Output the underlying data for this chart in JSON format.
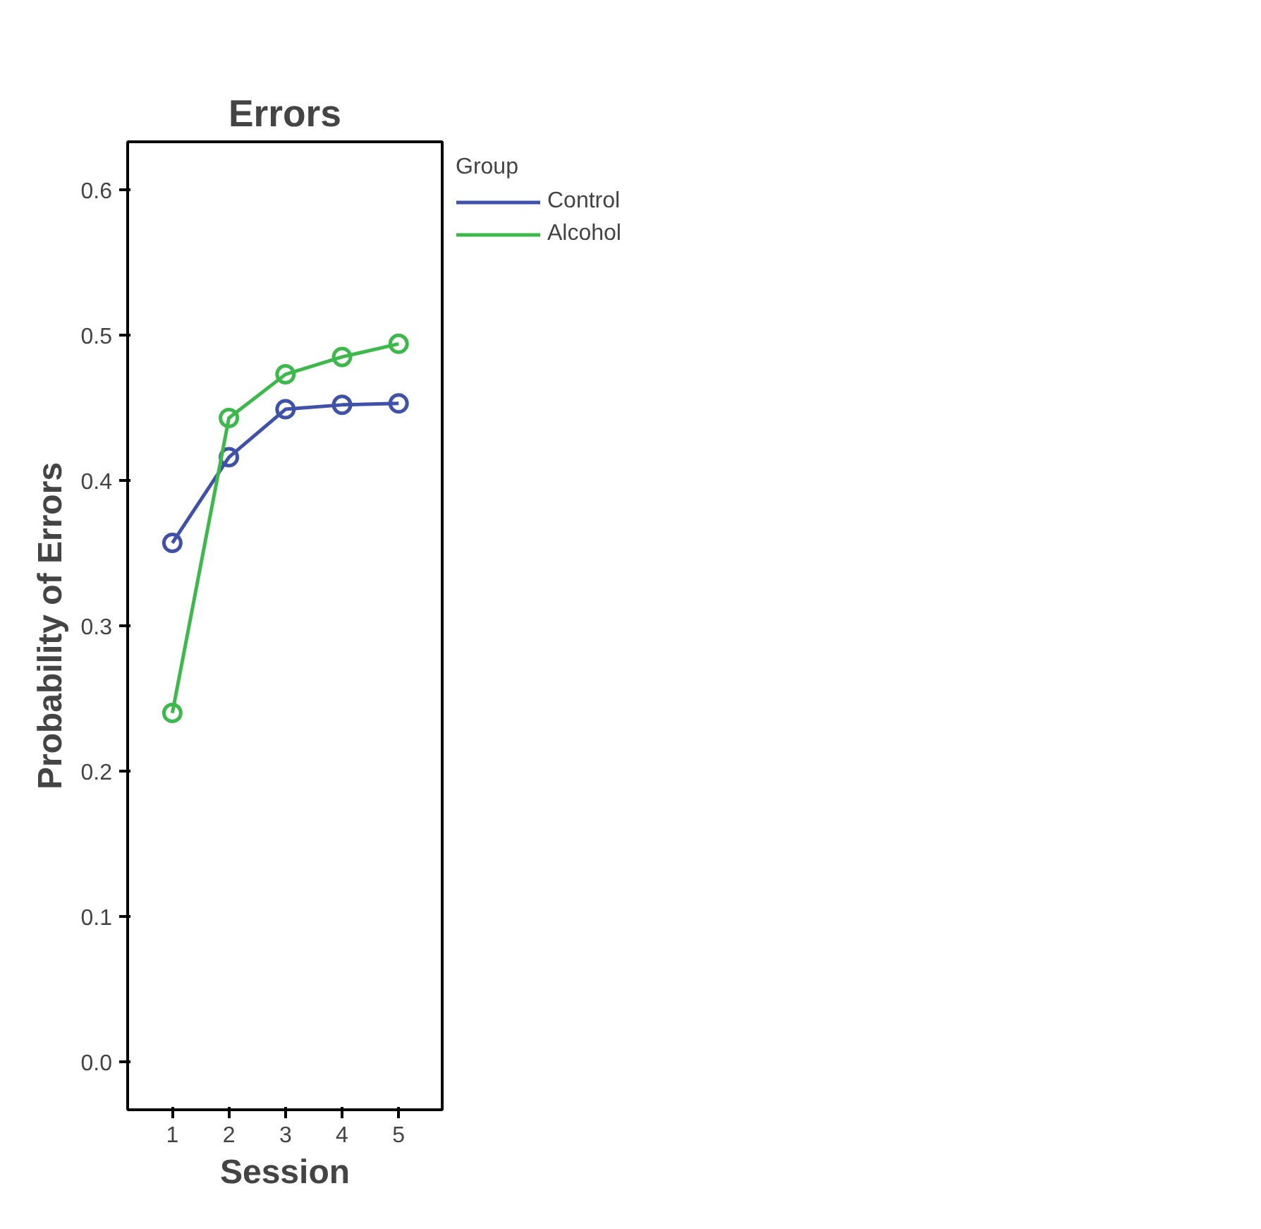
{
  "chart_data": {
    "type": "line",
    "title": "Errors",
    "xlabel": "Session",
    "ylabel": "Probability of Errors",
    "legend_title": "Group",
    "x": [
      1,
      2,
      3,
      4,
      5
    ],
    "series": [
      {
        "name": "Control",
        "color": "#3f51a8",
        "values": [
          0.357,
          0.416,
          0.449,
          0.452,
          0.453
        ]
      },
      {
        "name": "Alcohol",
        "color": "#3cb94a",
        "values": [
          0.24,
          0.443,
          0.473,
          0.485,
          0.494
        ]
      }
    ],
    "xlim": [
      0.21,
      5.77
    ],
    "xticks": [
      1,
      2,
      3,
      4,
      5
    ],
    "ylim": [
      -0.033,
      0.633
    ],
    "yticks": [
      {
        "value": 0,
        "label": "0.0"
      },
      0.1,
      0.2,
      0.3,
      0.4,
      0.5,
      0.6
    ],
    "grid": false,
    "legend": "top right",
    "marker": "circle",
    "line_style": "solid"
  }
}
